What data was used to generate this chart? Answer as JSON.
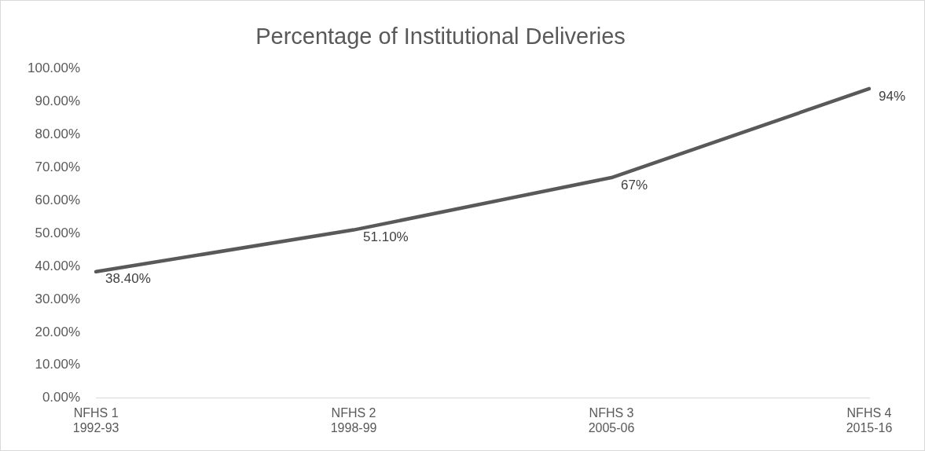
{
  "chart_data": {
    "type": "line",
    "title": "Percentage of Institutional Deliveries",
    "categories": [
      "NFHS 1\n1992-93",
      "NFHS 2\n1998-99",
      "NFHS 3\n2005-06",
      "NFHS 4\n2015-16"
    ],
    "series": [
      {
        "color": "#595959",
        "values": [
          38.4,
          51.1,
          67,
          94
        ],
        "value_labels": [
          "38.40%",
          "51.10%",
          "67%",
          "94%"
        ]
      }
    ],
    "ylim": [
      0,
      100
    ],
    "yticks": [
      {
        "value": 0,
        "label": "0.00%"
      },
      {
        "value": 10,
        "label": "10.00%"
      },
      {
        "value": 20,
        "label": "20.00%"
      },
      {
        "value": 30,
        "label": "30.00%"
      },
      {
        "value": 40,
        "label": "40.00%"
      },
      {
        "value": 50,
        "label": "50.00%"
      },
      {
        "value": 60,
        "label": "60.00%"
      },
      {
        "value": 70,
        "label": "70.00%"
      },
      {
        "value": 80,
        "label": "80.00%"
      },
      {
        "value": 90,
        "label": "90.00%"
      },
      {
        "value": 100,
        "label": "100.00%"
      }
    ],
    "grid": false,
    "legend": false,
    "marker": "none",
    "line_style": "solid"
  }
}
